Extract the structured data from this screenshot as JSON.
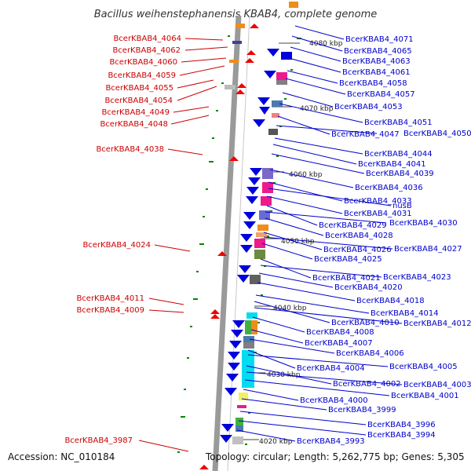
{
  "title": "Bacillus weihenstephanensis KBAB4, complete genome",
  "footer": {
    "accession": "Accession: NC_010184",
    "summary": "Topology: circular; Length: 5,262,775 bp; Genes: 5,305"
  },
  "kbp_labels": [
    "4080 kbp",
    "4070 kbp",
    "4060 kbp",
    "4050 kbp",
    "4040 kbp",
    "4030 kbp",
    "4020 kbp"
  ],
  "left_labels": [
    "BcerKBAB4_4064",
    "BcerKBAB4_4062",
    "BcerKBAB4_4060",
    "BcerKBAB4_4059",
    "BcerKBAB4_4055",
    "BcerKBAB4_4054",
    "BcerKBAB4_4049",
    "BcerKBAB4_4048",
    "BcerKBAB4_4038",
    "BcerKBAB4_4024",
    "BcerKBAB4_4011",
    "BcerKBAB4_4009",
    "BcerKBAB4_3987"
  ],
  "right_labels": [
    "BcerKBAB4_4071",
    "BcerKBAB4_4065",
    "BcerKBAB4_4063",
    "BcerKBAB4_4061",
    "BcerKBAB4_4058",
    "BcerKBAB4_4057",
    "BcerKBAB4_4053",
    "BcerKBAB4_4051",
    "BcerKBAB4_4047",
    "BcerKBAB4_4050",
    "BcerKBAB4_4044",
    "BcerKBAB4_4041",
    "BcerKBAB4_4039",
    "BcerKBAB4_4036",
    "BcerKBAB4_4033",
    "nusB",
    "BcerKBAB4_4031",
    "BcerKBAB4_4029",
    "BcerKBAB4_4030",
    "BcerKBAB4_4028",
    "BcerKBAB4_4026",
    "BcerKBAB4_4027",
    "BcerKBAB4_4025",
    "BcerKBAB4_4021",
    "BcerKBAB4_4023",
    "BcerKBAB4_4020",
    "BcerKBAB4_4018",
    "BcerKBAB4_4014",
    "BcerKBAB4_4010",
    "BcerKBAB4_4012",
    "BcerKBAB4_4008",
    "BcerKBAB4_4007",
    "BcerKBAB4_4006",
    "BcerKBAB4_4004",
    "BcerKBAB4_4005",
    "BcerKBAB4_4002",
    "BcerKBAB4_4003",
    "BcerKBAB4_4001",
    "BcerKBAB4_4000",
    "BcerKBAB4_3999",
    "BcerKBAB4_3996",
    "BcerKBAB4_3994",
    "BcerKBAB4_3993"
  ],
  "colors": {
    "backbone": "#888888",
    "forward_gene": "#0000dd",
    "reverse_gene": "#ee0000",
    "left_label": "#cc0000",
    "right_label": "#0000cc",
    "gc_dots": "#008800"
  }
}
